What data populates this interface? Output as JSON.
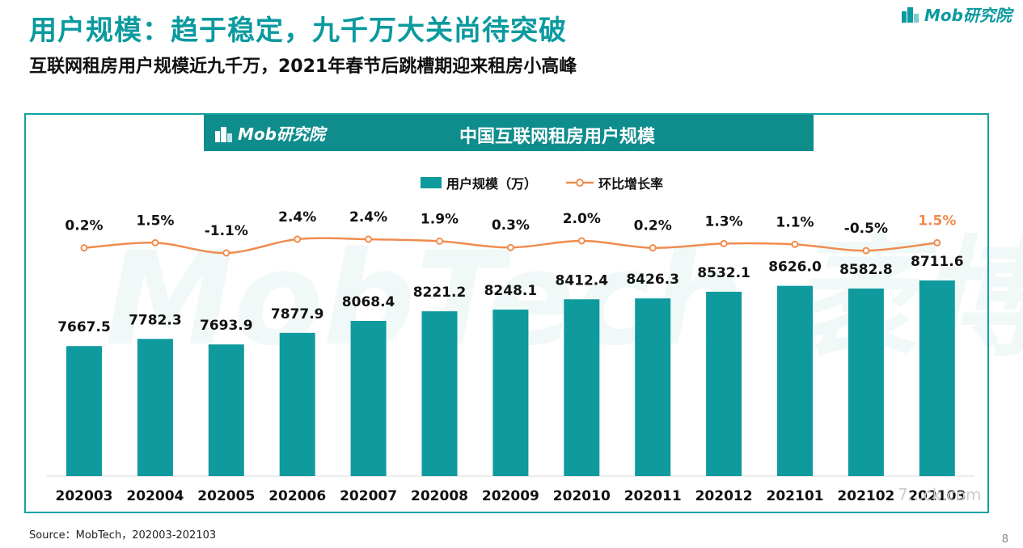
{
  "header": {
    "title": "用户规模：趋于稳定，九千万大关尚待突破",
    "subtitle": "互联网租房用户规模近九千万，2021年春节后跳槽期迎来租房小高峰",
    "logo_text": "Mob研究院"
  },
  "panel": {
    "logo_text": "Mob研究院",
    "watermark_text": "MobTech 袤博",
    "corner_mark_text": "7...ck.com"
  },
  "colors": {
    "accent": "#0a9a9f",
    "bar": "#0f9a9e",
    "line": "#f08c4e",
    "highlight_label": "#f08c4e"
  },
  "chart_data": {
    "type": "bar",
    "title": "中国互联网租房用户规模",
    "categories": [
      "202003",
      "202004",
      "202005",
      "202006",
      "202007",
      "202008",
      "202009",
      "202010",
      "202011",
      "202012",
      "202101",
      "202102",
      "202103"
    ],
    "series": [
      {
        "name": "用户规模（万）",
        "type": "bar",
        "values": [
          7667.5,
          7782.3,
          7693.9,
          7877.9,
          8068.4,
          8221.2,
          8248.1,
          8412.4,
          8426.3,
          8532.1,
          8626.0,
          8582.8,
          8711.6
        ],
        "labels": [
          "7667.5",
          "7782.3",
          "7693.9",
          "7877.9",
          "8068.4",
          "8221.2",
          "8248.1",
          "8412.4",
          "8426.3",
          "8532.1",
          "8626.0",
          "8582.8",
          "8711.6"
        ]
      },
      {
        "name": "环比增长率",
        "type": "line",
        "values": [
          0.2,
          1.5,
          -1.1,
          2.4,
          2.4,
          1.9,
          0.3,
          2.0,
          0.2,
          1.3,
          1.1,
          -0.5,
          1.5
        ],
        "labels": [
          "0.2%",
          "1.5%",
          "-1.1%",
          "2.4%",
          "2.4%",
          "1.9%",
          "0.3%",
          "2.0%",
          "0.2%",
          "1.3%",
          "1.1%",
          "-0.5%",
          "1.5%"
        ]
      }
    ],
    "legend_position": "top-center",
    "grid": false
  },
  "footer": {
    "source": "Source：MobTech，202003-202103",
    "page_number": "8"
  }
}
